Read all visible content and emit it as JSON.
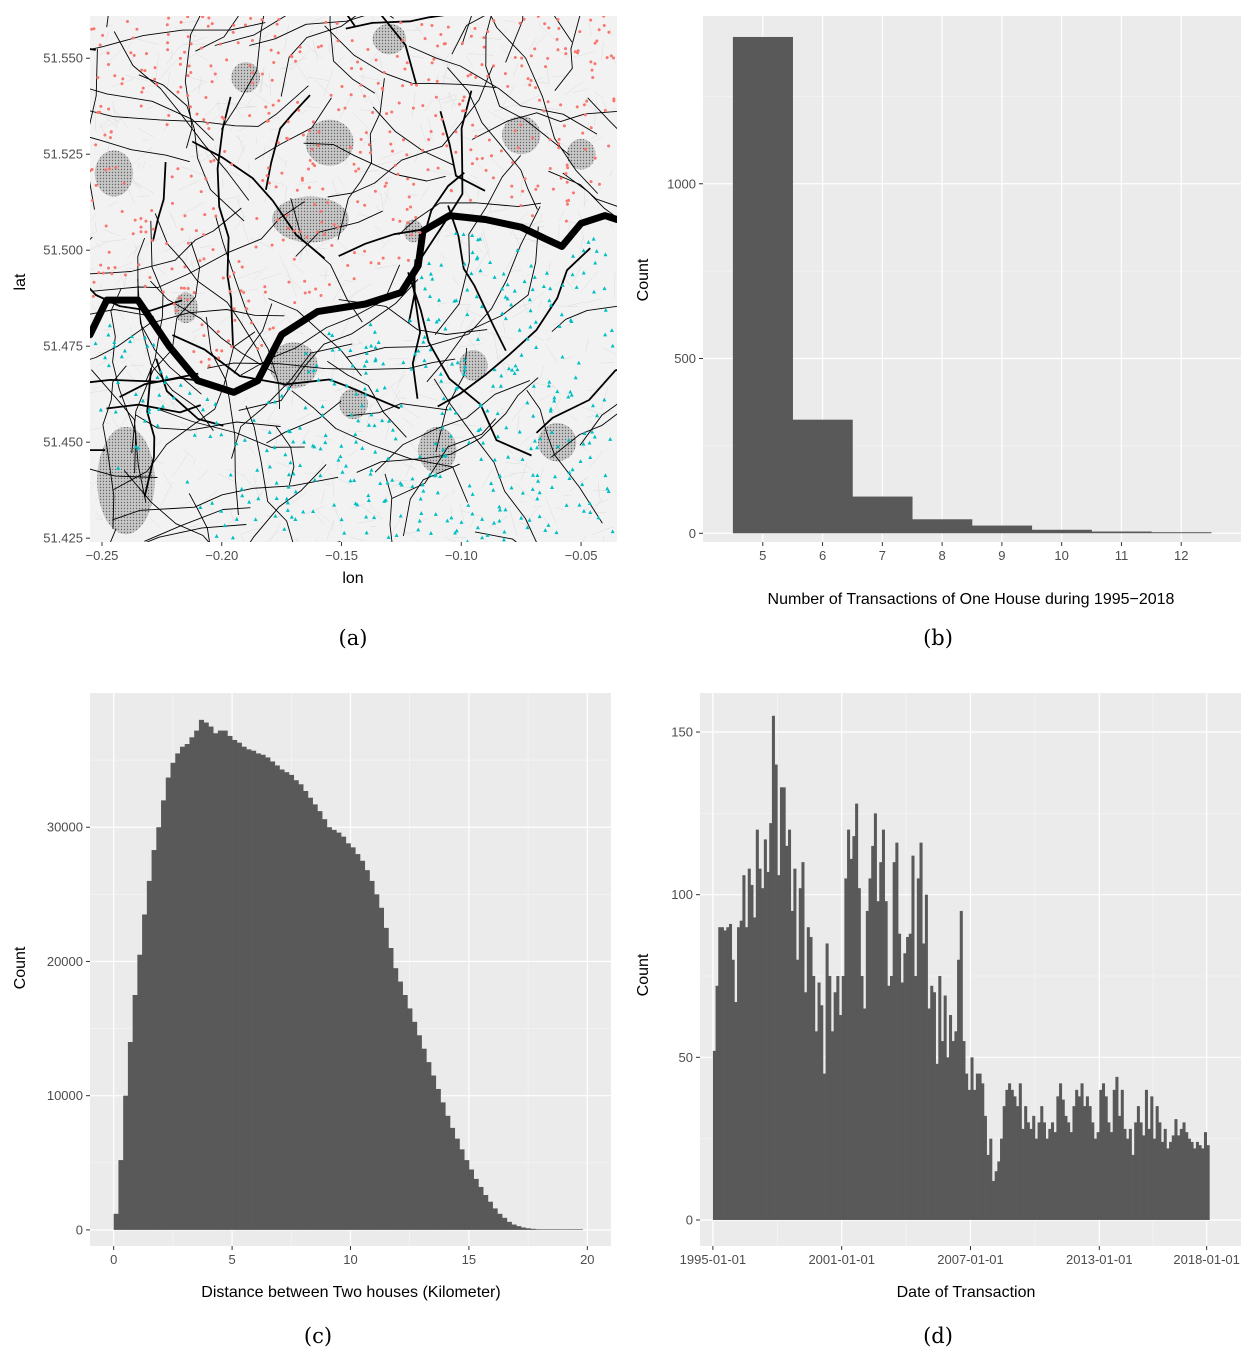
{
  "captions": [
    "(a)",
    "(b)",
    "(c)",
    "(d)"
  ],
  "colors": {
    "panel_bg": "#ebebeb",
    "grid_major": "#ffffff",
    "bar_fill": "#595959",
    "north_points": "#f8766d",
    "south_points": "#00bfc4",
    "roads": "#000000",
    "river": "#000000",
    "parks": "#a8a8a8"
  },
  "chart_data": [
    {
      "id": "a",
      "type": "scatter",
      "xlabel": "lon",
      "ylabel": "lat",
      "xlim": [
        -0.255,
        -0.035
      ],
      "ylim": [
        51.424,
        51.561
      ],
      "x_ticks": [
        -0.25,
        -0.2,
        -0.15,
        -0.1,
        -0.05
      ],
      "x_tick_labels": [
        "−0.25",
        "−0.20",
        "−0.15",
        "−0.10",
        "−0.05"
      ],
      "y_ticks": [
        51.425,
        51.45,
        51.475,
        51.5,
        51.525,
        51.55
      ],
      "y_tick_labels": [
        "51.425",
        "51.450",
        "51.475",
        "51.500",
        "51.525",
        "51.550"
      ],
      "basemap": "street map of London with River Thames",
      "series": [
        {
          "marker": "circle",
          "color": "#f8766d",
          "region": "north of river"
        },
        {
          "marker": "triangle",
          "color": "#00bfc4",
          "region": "south of river"
        }
      ]
    },
    {
      "id": "b",
      "type": "bar",
      "xlabel": "Number of Transactions of One House during 1995−2018",
      "ylabel": "Count",
      "categories": [
        "5",
        "6",
        "7",
        "8",
        "9",
        "10",
        "11",
        "12"
      ],
      "values": [
        1420,
        325,
        105,
        40,
        22,
        10,
        5,
        3
      ],
      "xlim": [
        4,
        13
      ],
      "ylim": [
        -25,
        1480
      ],
      "y_ticks": [
        0,
        500,
        1000
      ],
      "y_tick_labels": [
        "0",
        "500",
        "1000"
      ]
    },
    {
      "id": "c",
      "type": "bar",
      "xlabel": "Distance between Two houses (Kilometer)",
      "ylabel": "Count",
      "bin_start": 0,
      "bin_width": 0.2,
      "values": [
        1200,
        5200,
        10000,
        14000,
        17500,
        20500,
        23500,
        26000,
        28300,
        30000,
        32000,
        33700,
        34800,
        35500,
        36000,
        36200,
        36700,
        37200,
        38000,
        37800,
        37500,
        37000,
        37200,
        37200,
        36800,
        36500,
        36300,
        36000,
        35800,
        35700,
        35500,
        35400,
        35200,
        34900,
        34600,
        34300,
        34100,
        33900,
        33500,
        33200,
        32700,
        32200,
        31700,
        31200,
        30600,
        30000,
        29800,
        29600,
        29300,
        28800,
        28500,
        28000,
        27500,
        26800,
        26000,
        25000,
        24000,
        22500,
        21000,
        19500,
        18500,
        17500,
        16500,
        15500,
        14500,
        13500,
        12500,
        11500,
        10500,
        9500,
        8500,
        7600,
        6800,
        6000,
        5200,
        4500,
        3800,
        3200,
        2600,
        2100,
        1600,
        1200,
        900,
        600,
        400,
        280,
        180,
        120,
        80,
        50,
        30,
        20,
        15,
        10,
        5,
        3,
        2,
        1,
        1,
        0
      ],
      "xlim": [
        -1,
        21
      ],
      "ylim": [
        -1200,
        40000
      ],
      "x_ticks": [
        0,
        5,
        10,
        15,
        20
      ],
      "x_tick_labels": [
        "0",
        "5",
        "10",
        "15",
        "20"
      ],
      "y_ticks": [
        0,
        10000,
        20000,
        30000
      ],
      "y_tick_labels": [
        "0",
        "10000",
        "20000",
        "30000"
      ]
    },
    {
      "id": "d",
      "type": "bar",
      "xlabel": "Date of Transaction",
      "ylabel": "Count",
      "x_start": "1995-01-01",
      "x_end": "2019-01-01",
      "bin_width_months": 1.5,
      "values": [
        52,
        72,
        90,
        90,
        89,
        90,
        91,
        80,
        67,
        90,
        92,
        106,
        90,
        108,
        103,
        93,
        120,
        108,
        102,
        117,
        107,
        122,
        155,
        140,
        106,
        133,
        133,
        115,
        120,
        95,
        108,
        80,
        102,
        110,
        70,
        90,
        87,
        75,
        58,
        73,
        66,
        45,
        85,
        75,
        58,
        70,
        75,
        63,
        75,
        105,
        120,
        111,
        118,
        128,
        102,
        75,
        65,
        95,
        105,
        115,
        125,
        98,
        110,
        120,
        98,
        72,
        75,
        110,
        116,
        88,
        73,
        82,
        87,
        88,
        112,
        75,
        105,
        116,
        85,
        100,
        65,
        72,
        70,
        48,
        75,
        55,
        69,
        50,
        63,
        55,
        58,
        80,
        95,
        55,
        45,
        40,
        50,
        40,
        45,
        45,
        42,
        32,
        20,
        25,
        12,
        15,
        18,
        25,
        35,
        40,
        42,
        40,
        38,
        35,
        42,
        28,
        35,
        30,
        28,
        32,
        25,
        30,
        35,
        30,
        25,
        28,
        30,
        27,
        38,
        42,
        37,
        32,
        30,
        27,
        35,
        40,
        38,
        42,
        35,
        38,
        35,
        30,
        25,
        27,
        40,
        42,
        38,
        30,
        27,
        40,
        44,
        32,
        40,
        28,
        25,
        28,
        20,
        30,
        35,
        30,
        26,
        40,
        28,
        38,
        25,
        35,
        30,
        24,
        28,
        22,
        24,
        26,
        31,
        26,
        28,
        30,
        27,
        25,
        24,
        22,
        24,
        23,
        22,
        27,
        23
      ],
      "xlim_years": [
        1994.4,
        2019.6
      ],
      "ylim": [
        -8,
        162
      ],
      "x_ticks": [
        "1995-01-01",
        "2001-01-01",
        "2007-01-01",
        "2013-01-01",
        "2018-01-01"
      ],
      "y_ticks": [
        0,
        50,
        100,
        150
      ],
      "y_tick_labels": [
        "0",
        "50",
        "100",
        "150"
      ]
    }
  ]
}
